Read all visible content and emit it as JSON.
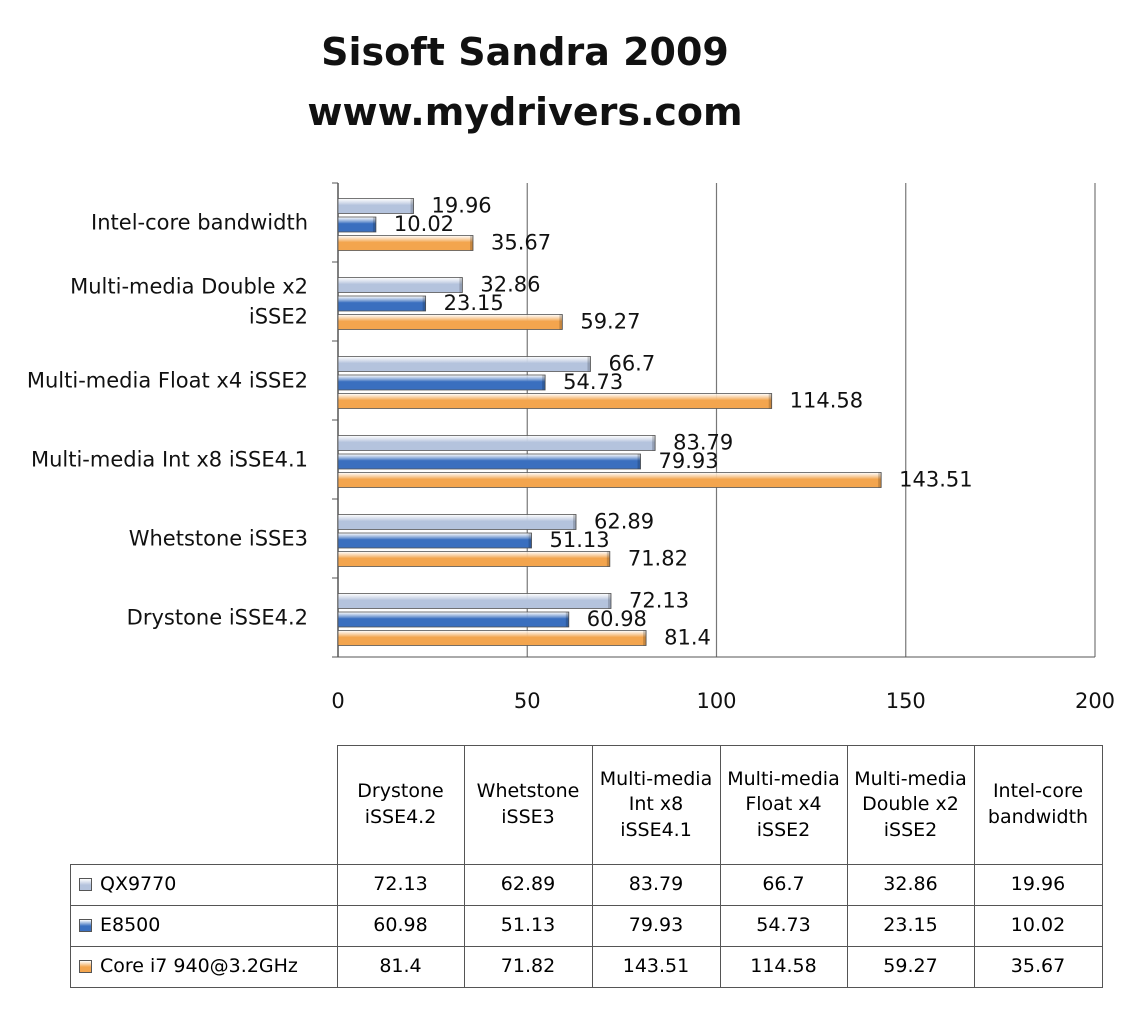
{
  "chart_data": {
    "type": "bar",
    "orientation": "horizontal",
    "title": "Sisoft Sandra 2009",
    "subtitle": "www.mydrivers.com",
    "categories": [
      "Drystone iSSE4.2",
      "Whetstone iSSE3",
      "Multi-media Int x8 iSSE4.1",
      "Multi-media Float x4 iSSE2",
      "Multi-media Double x2 iSSE2",
      "Intel-core bandwidth"
    ],
    "category_labels_lines": [
      [
        "Drystone iSSE4.2"
      ],
      [
        "Whetstone iSSE3"
      ],
      [
        "Multi-media Int x8 iSSE4.1"
      ],
      [
        "Multi-media Float x4 iSSE2"
      ],
      [
        "Multi-media Double x2",
        "iSSE2"
      ],
      [
        "Intel-core bandwidth"
      ]
    ],
    "table_header_lines": [
      [
        "Drystone",
        "iSSE4.2"
      ],
      [
        "Whetstone",
        "iSSE3"
      ],
      [
        "Multi-media",
        "Int x8 iSSE4.1"
      ],
      [
        "Multi-media",
        "Float x4 iSSE2"
      ],
      [
        "Multi-media",
        "Double x2",
        "iSSE2"
      ],
      [
        "Intel-core",
        "bandwidth"
      ]
    ],
    "series": [
      {
        "name": "QX9770",
        "color": "#b4c3dd",
        "values": [
          72.13,
          62.89,
          83.79,
          66.7,
          32.86,
          19.96
        ],
        "labels": [
          "72.13",
          "62.89",
          "83.79",
          "66.7",
          "32.86",
          "19.96"
        ]
      },
      {
        "name": "E8500",
        "color": "#3a6fbf",
        "values": [
          60.98,
          51.13,
          79.93,
          54.73,
          23.15,
          10.02
        ],
        "labels": [
          "60.98",
          "51.13",
          "79.93",
          "54.73",
          "23.15",
          "10.02"
        ]
      },
      {
        "name": "Core i7 940@3.2GHz",
        "color": "#f3a54e",
        "values": [
          81.4,
          71.82,
          143.51,
          114.58,
          59.27,
          35.67
        ],
        "labels": [
          "81.4",
          "71.82",
          "143.51",
          "114.58",
          "59.27",
          "35.67"
        ]
      }
    ],
    "xlim": [
      0,
      200
    ],
    "xticks": [
      "0",
      "50",
      "100",
      "150",
      "200"
    ],
    "grid": true,
    "data_table": true
  }
}
